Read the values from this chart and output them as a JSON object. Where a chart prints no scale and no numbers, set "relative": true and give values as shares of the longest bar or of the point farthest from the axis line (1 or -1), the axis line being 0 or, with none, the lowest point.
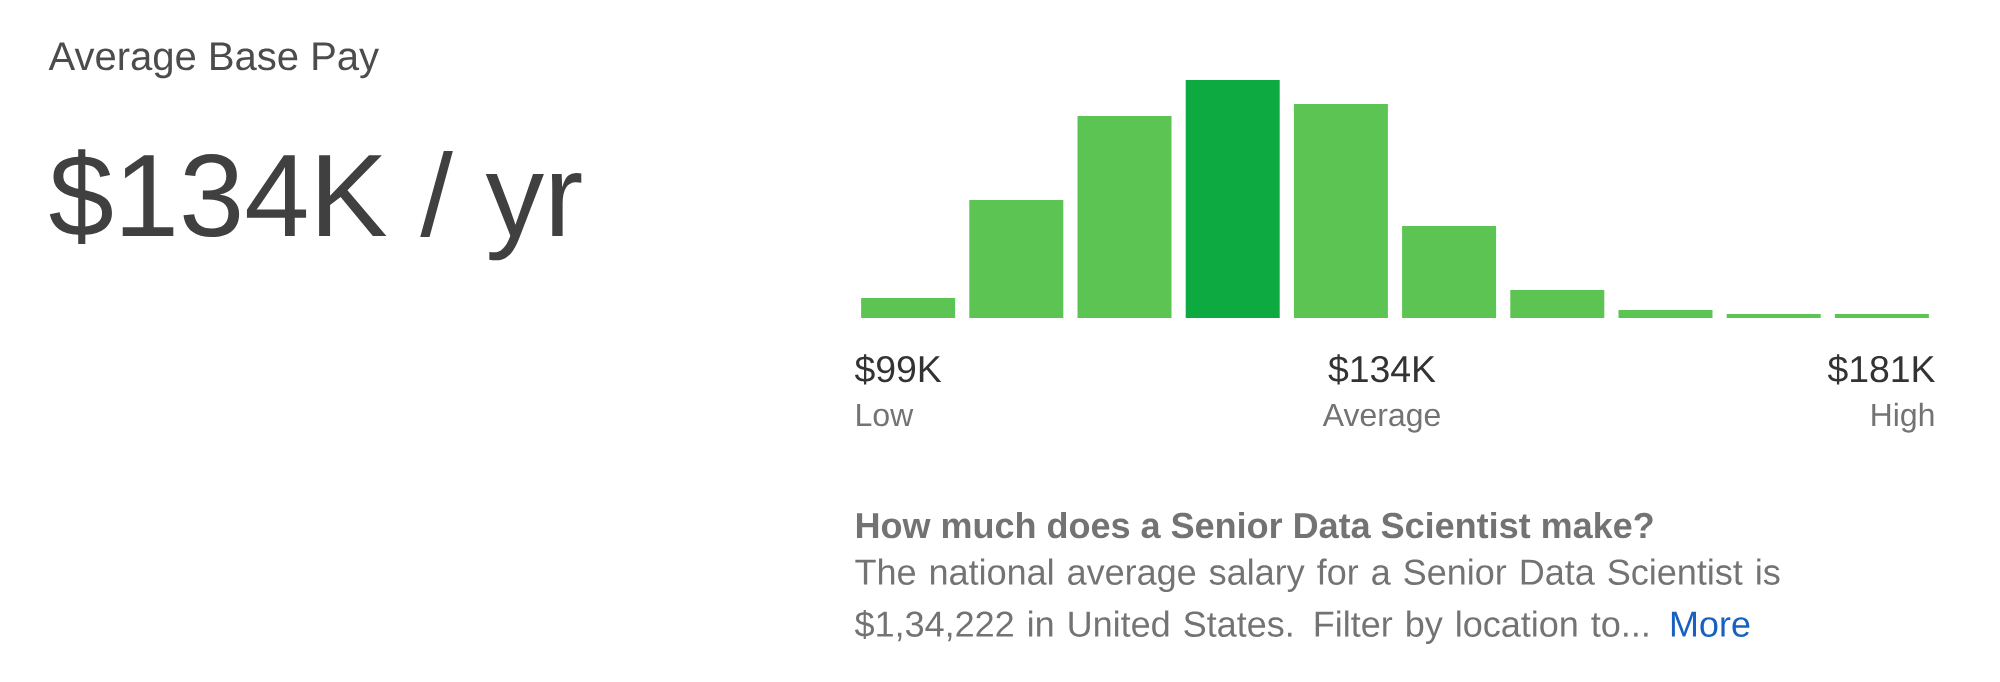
{
  "chart_data": {
    "type": "bar",
    "title": "Average Base Pay",
    "subtitle": "$134K / yr",
    "categories": [
      null,
      null,
      null,
      null,
      null,
      null,
      null,
      null,
      null,
      null
    ],
    "values": [
      0.084,
      0.496,
      0.849,
      1,
      0.899,
      0.387,
      0.118,
      0.034,
      0.017,
      0.017
    ],
    "colors": [
      "#5bc453",
      "#5bc453",
      "#5bc453",
      "#0caa41",
      "#5bc453",
      "#5bc453",
      "#5bc453",
      "#5bc453",
      "#5bc453",
      "#5bc453"
    ],
    "relative": true,
    "annotations": [
      "$99K",
      "Low",
      "$134K",
      "Average",
      "$181K",
      "High",
      "How much does a Senior Data Scientist make?",
      "The national average salary for a Senior Data Scientist is $1,34,222 in United States. Filter by location to...",
      "More"
    ]
  }
}
